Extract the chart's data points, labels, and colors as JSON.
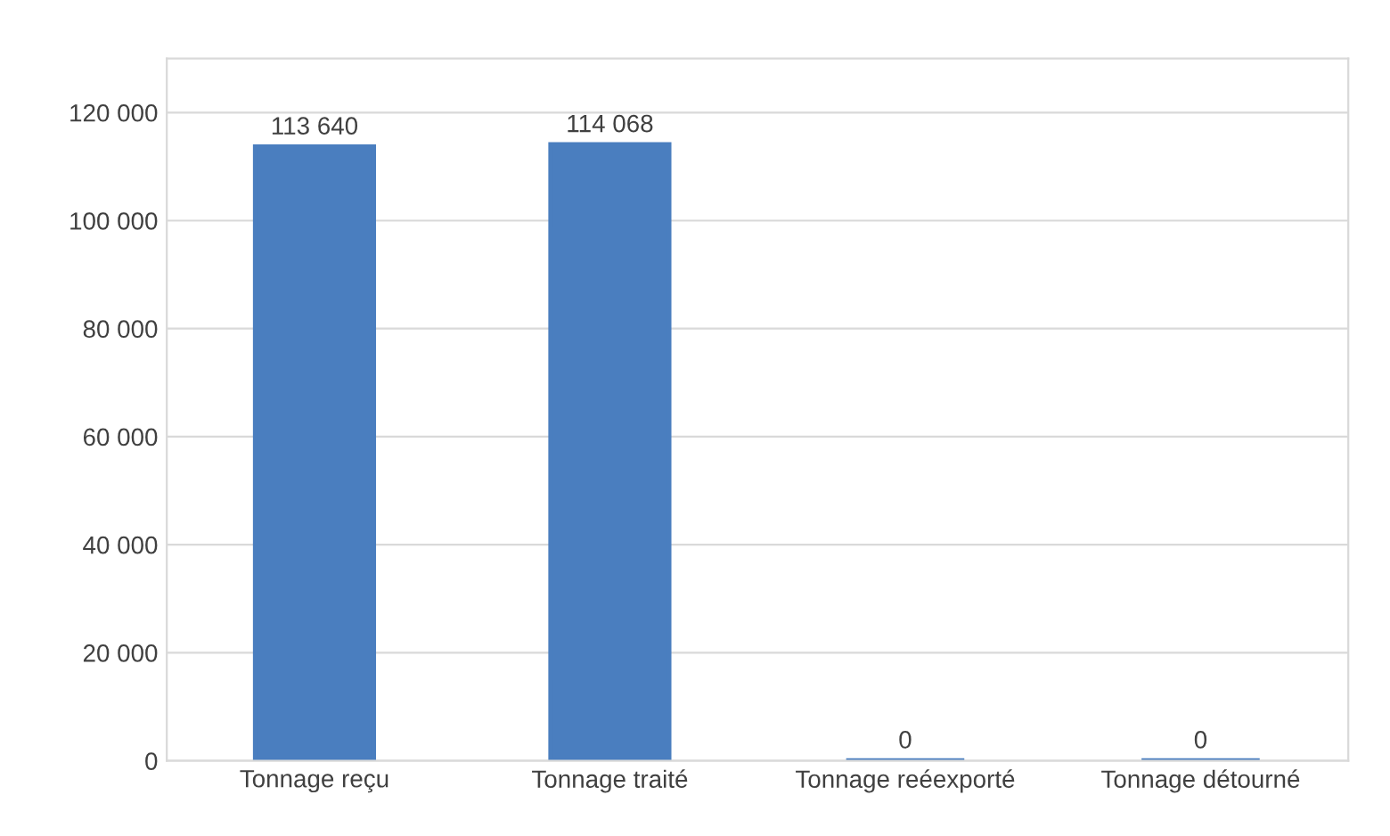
{
  "chart_data": {
    "type": "bar",
    "categories": [
      "Tonnage reçu",
      "Tonnage traité",
      "Tonnage reéexporté",
      "Tonnage détourné"
    ],
    "values": [
      113640,
      114068,
      0,
      0
    ],
    "value_labels": [
      "113 640",
      "114 068",
      "0",
      "0"
    ],
    "color": "#4a7ebf",
    "ylim": [
      0,
      130000
    ],
    "yticks": [
      0,
      {
        "value": 20000,
        "label": "20 000"
      },
      {
        "value": 40000,
        "label": "40 000"
      },
      {
        "value": 60000,
        "label": "60 000"
      },
      {
        "value": 80000,
        "label": "80 000"
      },
      {
        "value": 100000,
        "label": "100 000"
      },
      {
        "value": 120000,
        "label": "120 000"
      }
    ],
    "grid": "y",
    "legend": false
  }
}
